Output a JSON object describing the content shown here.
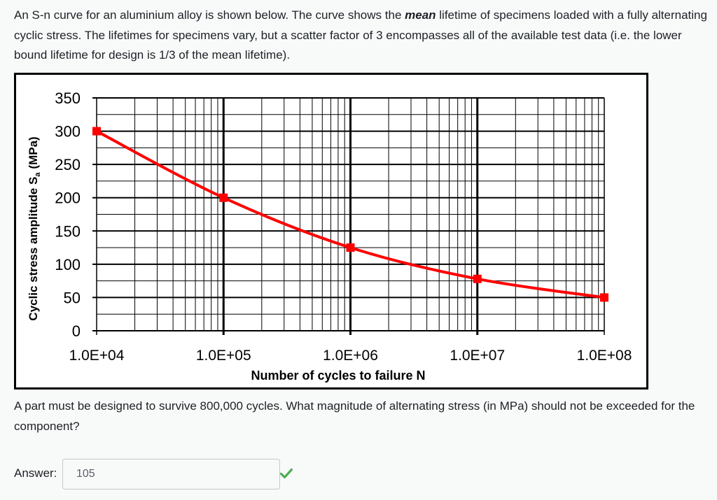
{
  "question": {
    "intro_before": "An S-n curve for an aluminium alloy is shown below. The curve shows the ",
    "intro_emphasis": "mean",
    "intro_after": " lifetime of specimens loaded with a fully alternating cyclic stress. The lifetimes for specimens vary, but a scatter factor of 3 encompasses all of the available test data (i.e. the lower bound lifetime for design is 1/3 of the mean lifetime).",
    "prompt": "A part must be designed to survive 800,000 cycles. What magnitude of alternating stress (in MPa) should not be exceeded for the component?"
  },
  "answer": {
    "label": "Answer:",
    "value": "105",
    "status": "correct",
    "status_icon": "checkmark-icon",
    "status_color": "#4caf50"
  },
  "chart_data": {
    "type": "line",
    "title": "",
    "xlabel": "Number of cycles to failure N",
    "ylabel_main": "Cyclic stress amplitude S",
    "ylabel_subscript": "a",
    "ylabel_unit": "(MPa)",
    "x_scale": "log",
    "xlim": [
      10000,
      100000000
    ],
    "ylim": [
      0,
      350
    ],
    "x_tick_labels": [
      "1.0E+04",
      "1.0E+05",
      "1.0E+06",
      "1.0E+07",
      "1.0E+08"
    ],
    "y_tick_labels": [
      "0",
      "50",
      "100",
      "150",
      "200",
      "250",
      "300",
      "350"
    ],
    "grid": true,
    "legend": false,
    "series": [
      {
        "color": "#ff0000",
        "marker": "square",
        "x": [
          10000,
          100000,
          1000000,
          10000000,
          100000000
        ],
        "y": [
          300,
          200,
          125,
          78,
          50
        ]
      }
    ]
  }
}
